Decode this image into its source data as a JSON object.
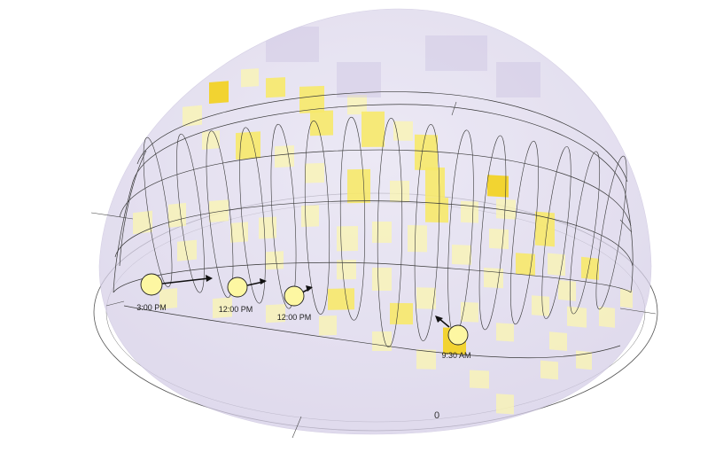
{
  "colors": {
    "dome": "#dcd6ec",
    "dome_edge": "#cfc8e4",
    "heat_light": "#fbf6b0",
    "heat_mid": "#f7e96a",
    "heat_strong": "#f3d21c",
    "heat_peak": "#eea520",
    "line": "#3a3a3a",
    "marker_fill": "#fdf7a2"
  },
  "sun_markers": [
    {
      "label": "3:00 PM",
      "name": "sun-position-3pm"
    },
    {
      "label": "12:00 PM",
      "name": "sun-position-noon-a"
    },
    {
      "label": "12:00 PM",
      "name": "sun-position-noon-b"
    },
    {
      "label": "9:30 AM",
      "name": "sun-position-930am"
    }
  ],
  "ground_ring_label": "0"
}
